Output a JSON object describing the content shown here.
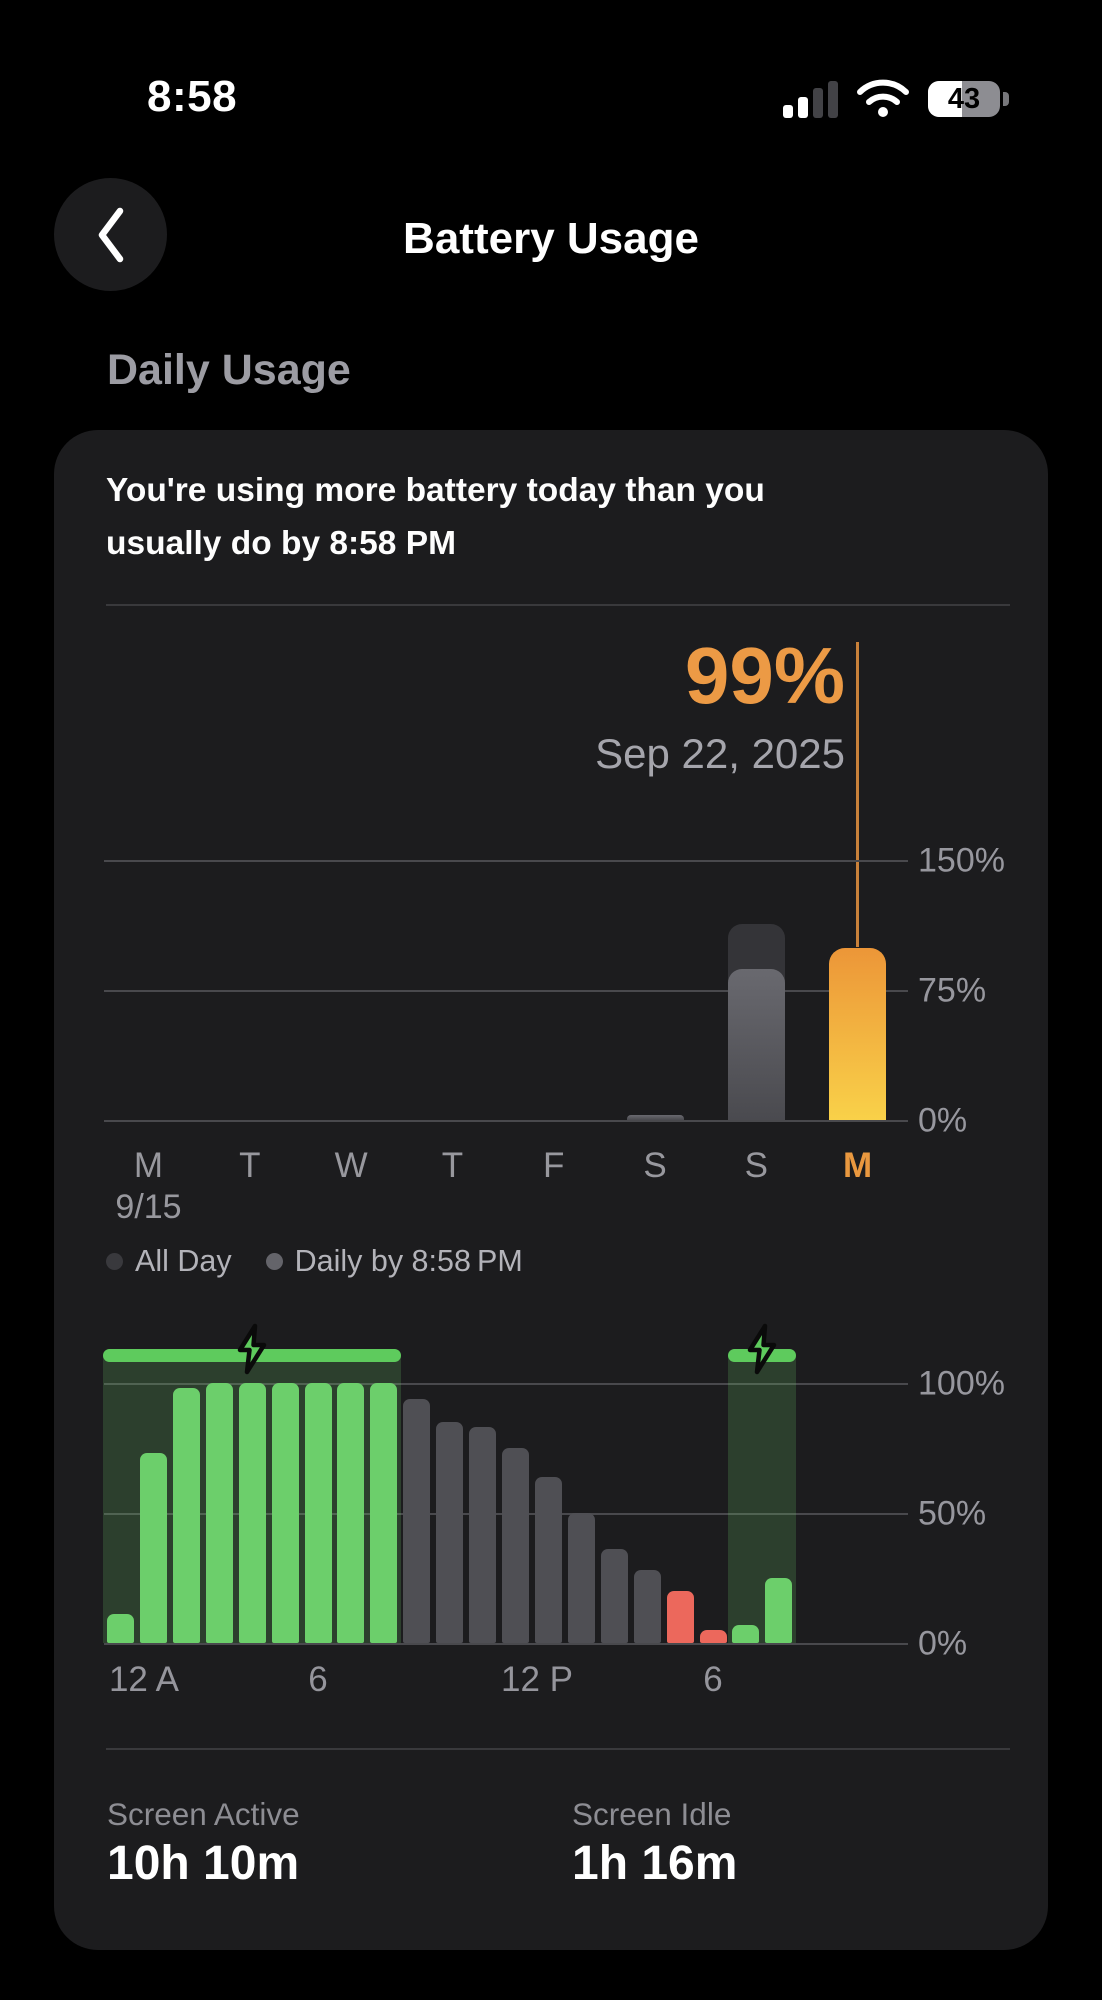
{
  "status_bar": {
    "time": "8:58",
    "battery_percent": "43"
  },
  "nav": {
    "title": "Battery Usage"
  },
  "section_title": "Daily Usage",
  "card": {
    "headline_line1": "You're using more battery today than you",
    "headline_line2": "usually do by 8:58 PM",
    "highlight": {
      "value": "99%",
      "date": "Sep 22, 2025"
    },
    "legend": {
      "all_day": "All Day",
      "daily_by": "Daily by 8:58 PM"
    },
    "stats": [
      {
        "label": "Screen Active",
        "value": "10h 10m"
      },
      {
        "label": "Screen Idle",
        "value": "1h 16m"
      }
    ]
  },
  "colors": {
    "accent_orange": "#ec9a45",
    "orange_bar_top": "#ec9638",
    "orange_bar_bottom": "#f9d149",
    "green_bar": "#6ccf6b",
    "charging_green": "#5ecb5d",
    "gray_bar": "#4f4f54",
    "red_bar": "#ec685c",
    "card_bg": "#1c1c1e"
  },
  "chart_data": [
    {
      "type": "bar",
      "title": "Daily battery usage by weekday (% of battery used)",
      "ylim": [
        0,
        150
      ],
      "yticks": [
        {
          "label": "150%",
          "value": 150
        },
        {
          "label": "75%",
          "value": 75
        },
        {
          "label": "0%",
          "value": 0
        }
      ],
      "legend_entries": [
        "All Day",
        "Daily by 8:58 PM"
      ],
      "highlight": {
        "index": 7,
        "value": "99%",
        "date": "Sep 22, 2025"
      },
      "days": [
        {
          "label": "M",
          "sub": "9/15",
          "all_day": 0,
          "daily_by": 0
        },
        {
          "label": "T",
          "all_day": 0,
          "daily_by": 0
        },
        {
          "label": "W",
          "all_day": 0,
          "daily_by": 0
        },
        {
          "label": "T",
          "all_day": 0,
          "daily_by": 0
        },
        {
          "label": "F",
          "all_day": 0,
          "daily_by": 0
        },
        {
          "label": "S",
          "all_day": 3,
          "daily_by": 3
        },
        {
          "label": "S",
          "all_day": 113,
          "daily_by": 87
        },
        {
          "label": "M",
          "all_day": 99,
          "daily_by": 99,
          "today": true
        }
      ]
    },
    {
      "type": "bar",
      "title": "Battery level by hour (%)",
      "ylim": [
        0,
        100
      ],
      "yticks": [
        {
          "label": "100%",
          "value": 100
        },
        {
          "label": "50%",
          "value": 50
        },
        {
          "label": "0%",
          "value": 0
        }
      ],
      "xticks": [
        "12 A",
        "6",
        "12 P",
        "6"
      ],
      "charging_periods": [
        [
          0,
          9
        ],
        [
          19,
          21
        ]
      ],
      "hours": [
        {
          "value": 11,
          "color": "green"
        },
        {
          "value": 73,
          "color": "green"
        },
        {
          "value": 98,
          "color": "green"
        },
        {
          "value": 100,
          "color": "green"
        },
        {
          "value": 100,
          "color": "green"
        },
        {
          "value": 100,
          "color": "green"
        },
        {
          "value": 100,
          "color": "green"
        },
        {
          "value": 100,
          "color": "green"
        },
        {
          "value": 100,
          "color": "green"
        },
        {
          "value": 94,
          "color": "gray"
        },
        {
          "value": 85,
          "color": "gray"
        },
        {
          "value": 83,
          "color": "gray"
        },
        {
          "value": 75,
          "color": "gray"
        },
        {
          "value": 64,
          "color": "gray"
        },
        {
          "value": 50,
          "color": "gray"
        },
        {
          "value": 36,
          "color": "gray"
        },
        {
          "value": 28,
          "color": "gray"
        },
        {
          "value": 20,
          "color": "red"
        },
        {
          "value": 5,
          "color": "red"
        },
        {
          "value": 7,
          "color": "green"
        },
        {
          "value": 25,
          "color": "green"
        },
        {
          "value": null,
          "color": "none"
        },
        {
          "value": null,
          "color": "none"
        },
        {
          "value": null,
          "color": "none"
        }
      ]
    }
  ]
}
